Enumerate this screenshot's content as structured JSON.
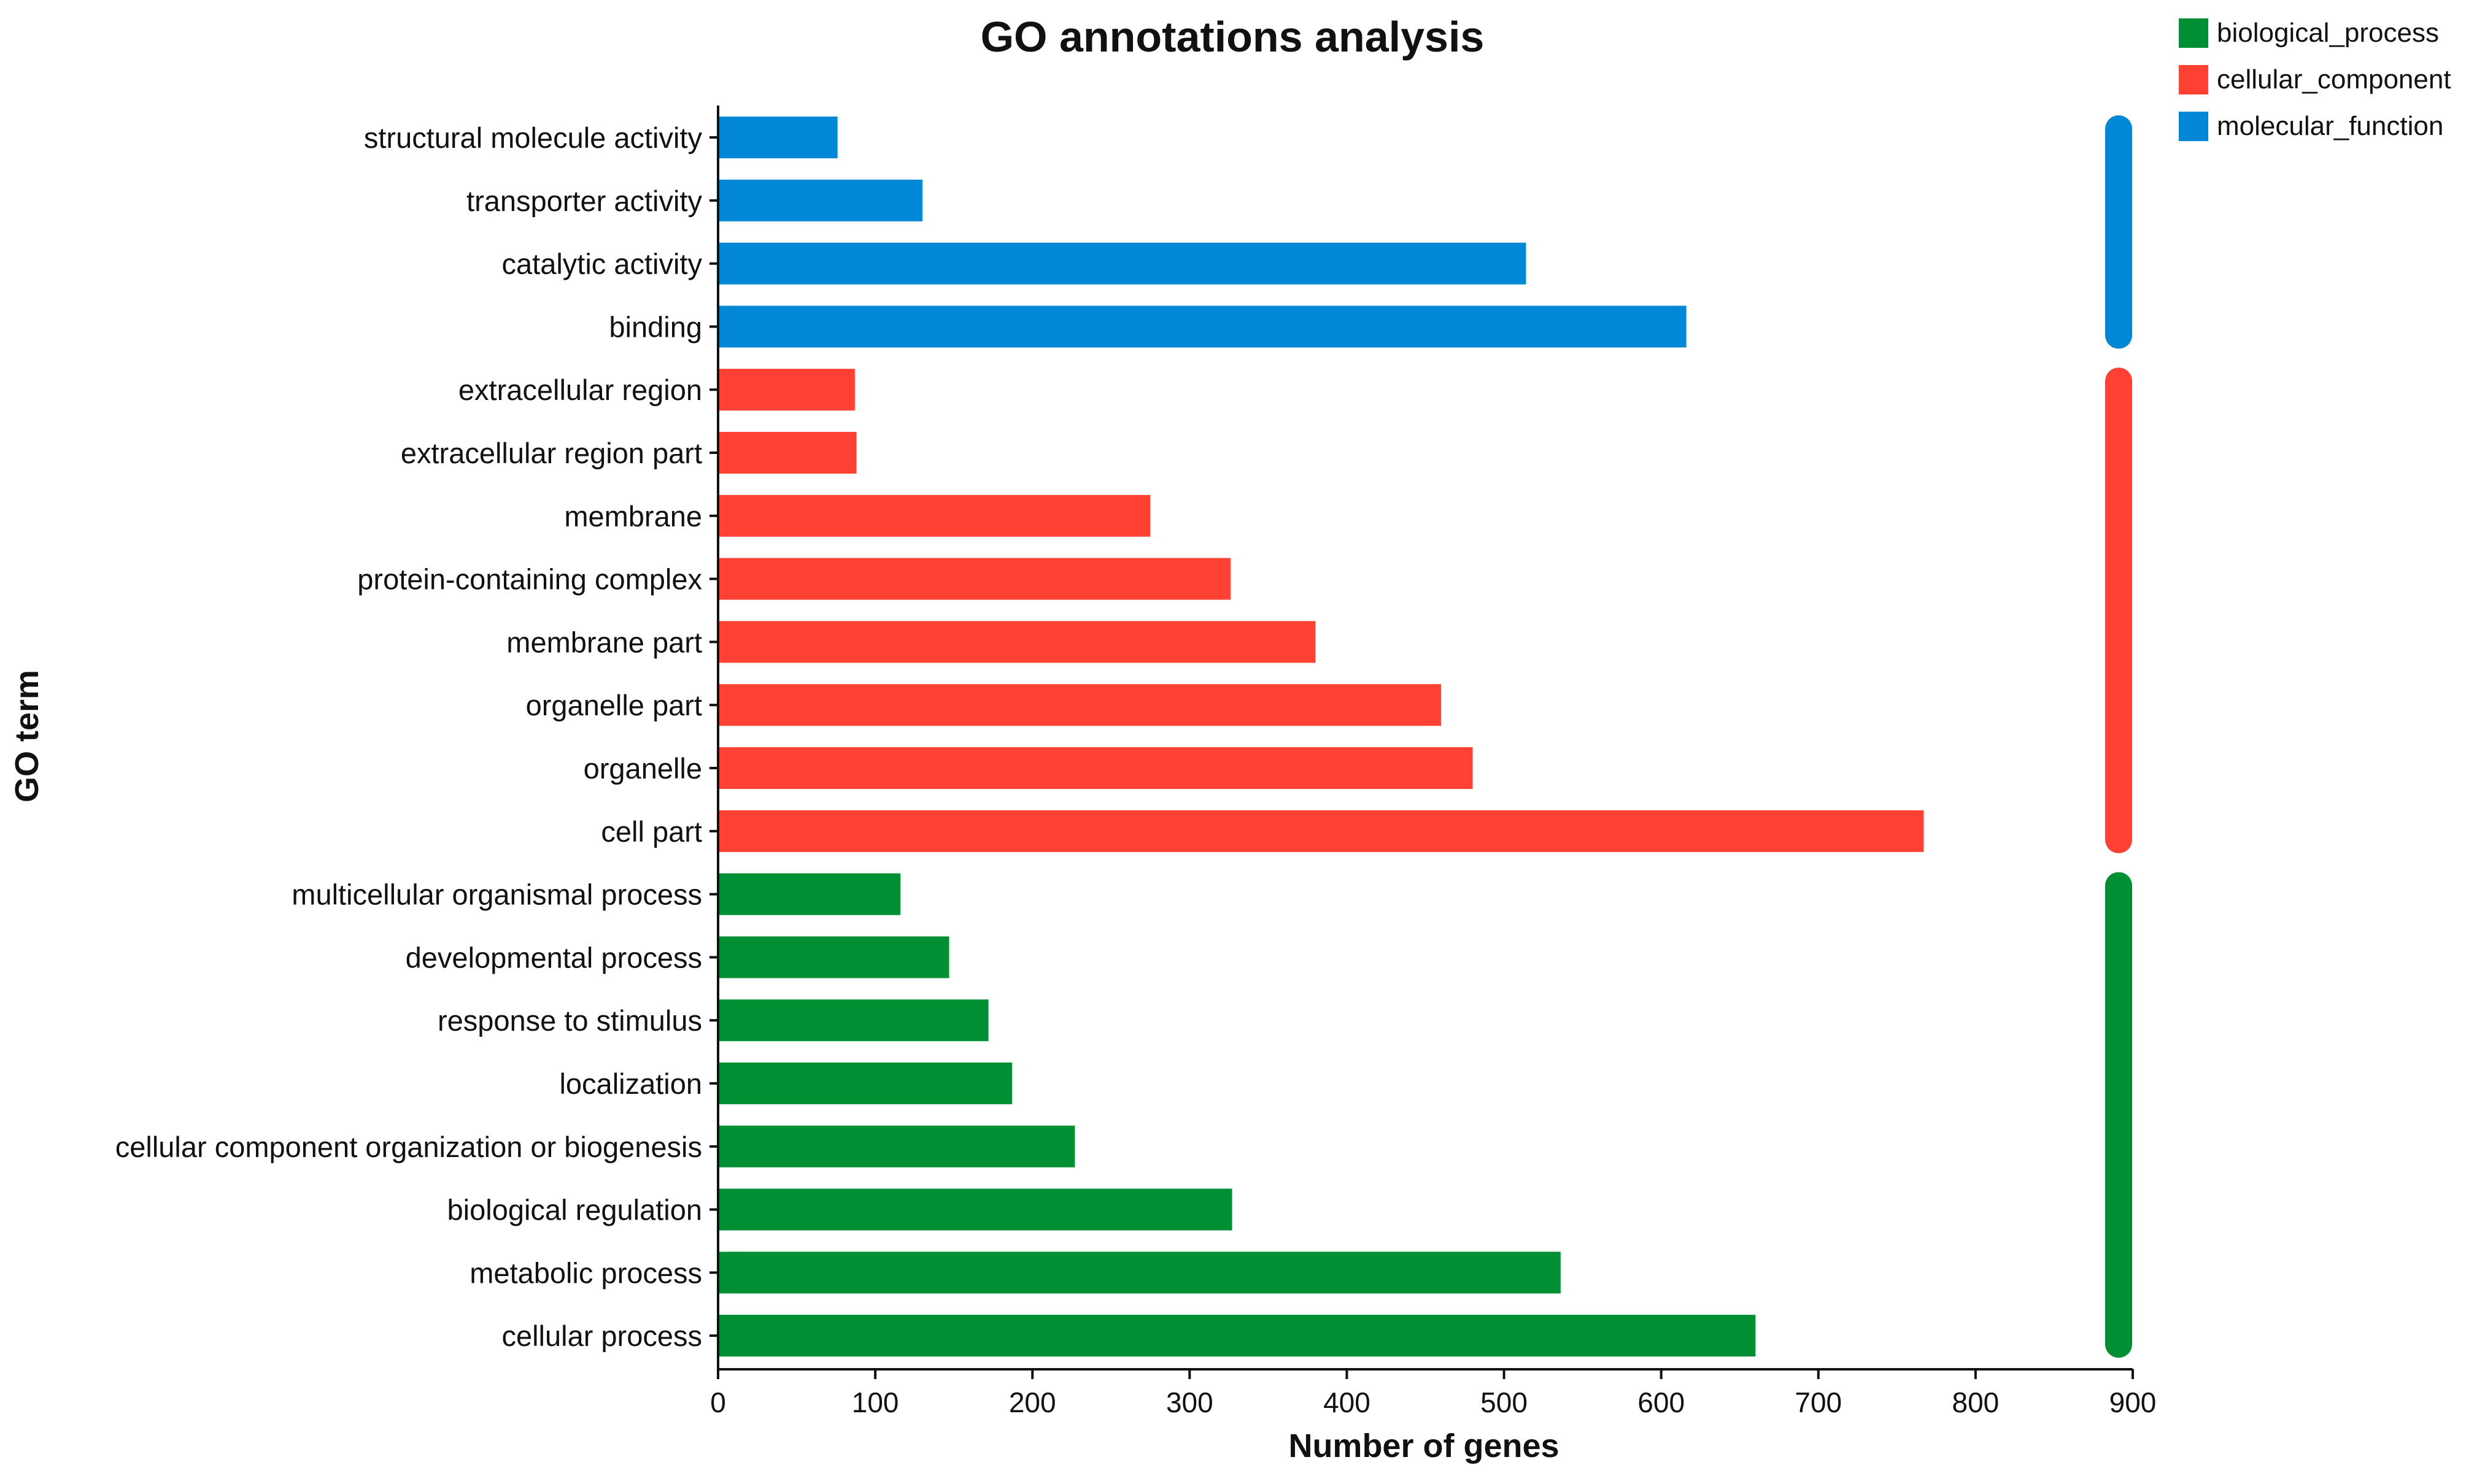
{
  "chart_data": {
    "type": "bar",
    "orientation": "horizontal",
    "title": "GO annotations analysis",
    "xlabel": "Number of genes",
    "ylabel": "GO term",
    "xlim": [
      0,
      900
    ],
    "xticks": [
      0,
      100,
      200,
      300,
      400,
      500,
      600,
      700,
      800,
      900
    ],
    "grid": false,
    "legend_position": "top-right",
    "series": [
      {
        "name": "molecular_function",
        "color": "#0088d6",
        "categories": [
          "structural molecule activity",
          "transporter activity",
          "catalytic activity",
          "binding"
        ],
        "values": [
          76,
          130,
          514,
          616
        ]
      },
      {
        "name": "cellular_component",
        "color": "#ff4133",
        "categories": [
          "extracellular region",
          "extracellular region part",
          "membrane",
          "protein-containing complex",
          "membrane part",
          "organelle part",
          "organelle",
          "cell part"
        ],
        "values": [
          87,
          88,
          275,
          326,
          380,
          460,
          480,
          767
        ]
      },
      {
        "name": "biological_process",
        "color": "#008f33",
        "categories": [
          "multicellular organismal process",
          "developmental process",
          "response to stimulus",
          "localization",
          "cellular component organization or biogenesis",
          "biological regulation",
          "metabolic process",
          "cellular process"
        ],
        "values": [
          116,
          147,
          172,
          187,
          227,
          327,
          536,
          660
        ]
      }
    ],
    "legend_order": [
      "biological_process",
      "cellular_component",
      "molecular_function"
    ]
  }
}
